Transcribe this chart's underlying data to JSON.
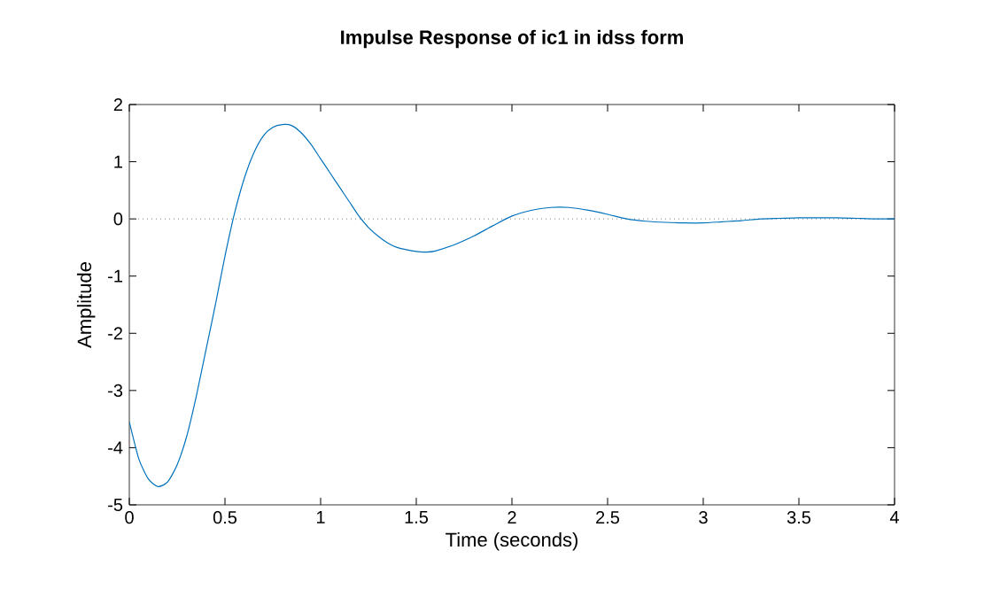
{
  "chart_data": {
    "type": "line",
    "title": "Impulse Response of ic1 in idss form",
    "xlabel": "Time (seconds)",
    "ylabel": "Amplitude",
    "x": [
      0,
      0.05,
      0.1,
      0.15,
      0.2,
      0.25,
      0.3,
      0.35,
      0.4,
      0.45,
      0.5,
      0.55,
      0.6,
      0.65,
      0.7,
      0.75,
      0.8,
      0.85,
      0.9,
      0.95,
      1.0,
      1.05,
      1.1,
      1.15,
      1.2,
      1.25,
      1.3,
      1.35,
      1.4,
      1.5,
      1.55,
      1.6,
      1.7,
      1.8,
      1.9,
      2.0,
      2.1,
      2.2,
      2.3,
      2.4,
      2.5,
      2.6,
      2.7,
      2.8,
      2.9,
      3.0,
      3.1,
      3.2,
      3.3,
      3.4,
      3.5,
      3.6,
      3.7,
      3.8,
      3.9,
      4.0
    ],
    "series": [
      {
        "color": "#0072bd",
        "values": [
          -3.55,
          -4.2,
          -4.55,
          -4.68,
          -4.6,
          -4.3,
          -3.8,
          -3.1,
          -2.3,
          -1.5,
          -0.65,
          0.1,
          0.7,
          1.15,
          1.45,
          1.6,
          1.65,
          1.63,
          1.5,
          1.3,
          1.05,
          0.8,
          0.55,
          0.3,
          0.05,
          -0.15,
          -0.3,
          -0.42,
          -0.5,
          -0.57,
          -0.58,
          -0.56,
          -0.45,
          -0.3,
          -0.12,
          0.05,
          0.15,
          0.2,
          0.2,
          0.15,
          0.08,
          0.0,
          -0.04,
          -0.06,
          -0.07,
          -0.07,
          -0.05,
          -0.03,
          0.0,
          0.01,
          0.02,
          0.02,
          0.02,
          0.01,
          0.0,
          0.0
        ]
      }
    ],
    "xlim": [
      0,
      4
    ],
    "ylim": [
      -5,
      2
    ],
    "xticks": [
      0,
      0.5,
      1,
      1.5,
      2,
      2.5,
      3,
      3.5,
      4
    ],
    "yticks": [
      -5,
      -4,
      -3,
      -2,
      -1,
      0,
      1,
      2
    ],
    "ref_lines": [
      {
        "axis": "y",
        "value": 0,
        "color": "#808080",
        "line_style": "dotted"
      }
    ],
    "line_style": "solid",
    "marker": "none"
  }
}
